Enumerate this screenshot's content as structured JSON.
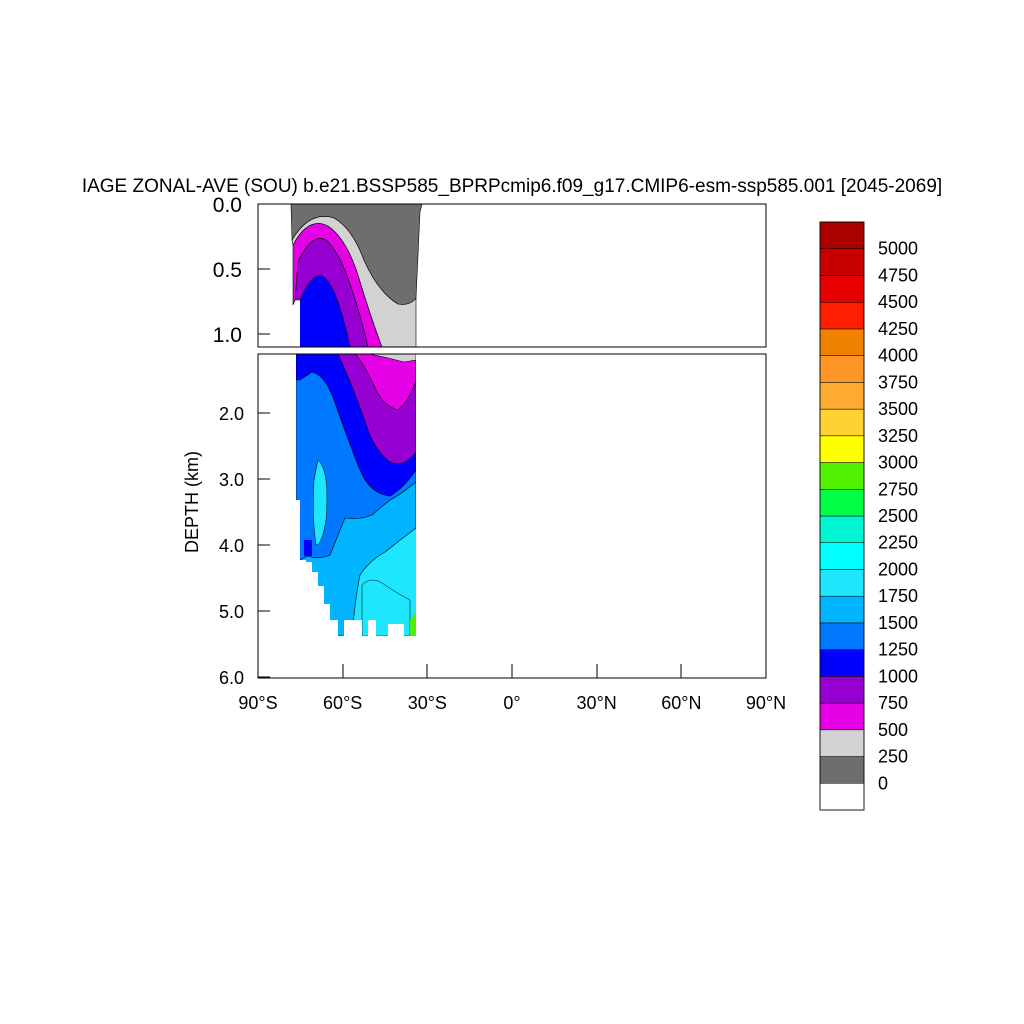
{
  "chart_data": {
    "type": "heatmap",
    "title": "IAGE ZONAL-AVE (SOU) b.e21.BSSP585_BPRPcmip6.f09_g17.CMIP6-esm-ssp585.001 [2045-2069]",
    "ylabel": "DEPTH (km)",
    "xlabel": "",
    "x_tick_labels": [
      "90°S",
      "60°S",
      "30°S",
      "0°",
      "30°N",
      "60°N",
      "90°N"
    ],
    "x_range": [
      -90,
      90
    ],
    "y_top_panel": {
      "range": [
        0.0,
        1.1
      ],
      "tick_labels": [
        "0.0",
        "0.5",
        "1.0"
      ]
    },
    "y_bottom_panel": {
      "range": [
        1.1,
        6.0
      ],
      "tick_labels": [
        "2.0",
        "3.0",
        "4.0",
        "5.0",
        "6.0"
      ]
    },
    "colorbar": {
      "levels": [
        "0",
        "250",
        "500",
        "750",
        "1000",
        "1250",
        "1500",
        "1750",
        "2000",
        "2250",
        "2500",
        "2750",
        "3000",
        "3250",
        "3500",
        "3750",
        "4000",
        "4250",
        "4500",
        "4750",
        "5000"
      ],
      "colors": [
        "#ffffff",
        "#6e6e6e",
        "#d2d2d2",
        "#e600e6",
        "#9600d2",
        "#0000ff",
        "#0078ff",
        "#00b4ff",
        "#1ee6ff",
        "#00ffff",
        "#00f5d2",
        "#00ff46",
        "#50f000",
        "#ffff00",
        "#ffd232",
        "#ffaa32",
        "#ff9628",
        "#f08200",
        "#ff1e00",
        "#e60000",
        "#c80000",
        "#aa0000"
      ]
    },
    "description_of_field": {
      "domain_lat": [
        -77,
        -34
      ],
      "surface_age": [
        0,
        250
      ],
      "deep_age_max": [
        2000,
        2750
      ]
    }
  }
}
